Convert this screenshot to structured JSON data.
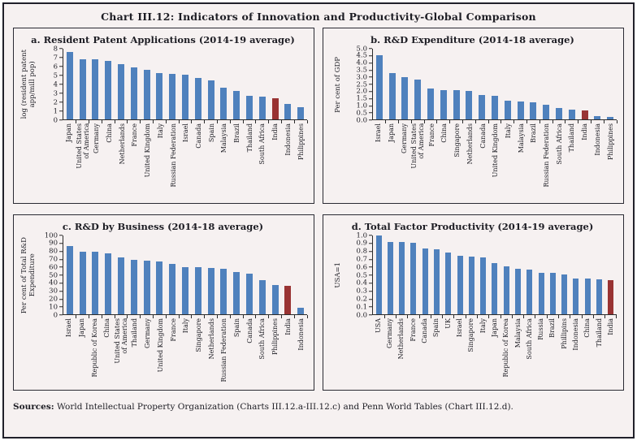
{
  "figure": {
    "title": "Chart III.12: Indicators of Innovation and Productivity-Global Comparison",
    "sources_label": "Sources:",
    "sources_text": "World Intellectual Property Organization (Charts III.12.a-III.12.c) and Penn World Tables (Chart III.12.d)."
  },
  "colors": {
    "bar_blue": "#4f81bd",
    "highlight_red": "#993333",
    "background": "#f6f1f1",
    "frame_border": "#20202a"
  },
  "chart_data": [
    {
      "id": "a",
      "type": "bar",
      "title": "a. Resident Patent Applications (2014-19 average)",
      "ylabel": "log (resident patent\napp/mill pop)",
      "ylim": [
        0,
        8
      ],
      "ystep": 1,
      "ydecimals": 0,
      "grid": false,
      "legend": "none",
      "highlight_category": "India",
      "categories": [
        "Japan",
        "United States\nof America",
        "Germany",
        "China",
        "Netherlands",
        "France",
        "United Kingdom",
        "Italy",
        "Russian Federation",
        "Israel",
        "Canada",
        "Spain",
        "Malaysia",
        "Brazil",
        "Thailand",
        "South Africa",
        "India",
        "Indonesia",
        "Philippines"
      ],
      "values": [
        7.6,
        6.8,
        6.8,
        6.65,
        6.25,
        5.9,
        5.65,
        5.25,
        5.15,
        5.05,
        4.7,
        4.4,
        3.6,
        3.2,
        2.65,
        2.55,
        2.4,
        1.75,
        1.35
      ]
    },
    {
      "id": "b",
      "type": "bar",
      "title": "b. R&D Expenditure (2014-18 average)",
      "ylabel": "Per cent of GDP",
      "ylim": [
        0,
        5
      ],
      "ystep": 0.5,
      "ydecimals": 1,
      "grid": false,
      "legend": "none",
      "highlight_category": "India",
      "categories": [
        "Israel",
        "Japan",
        "Germany",
        "United States\nof America",
        "France",
        "China",
        "Singapore",
        "Netherlands",
        "Canada",
        "United Kingdom",
        "Italy",
        "Malaysia",
        "Brazil",
        "Russian Federation",
        "South Africa",
        "Thailand",
        "India",
        "Indonesia",
        "Philippines"
      ],
      "values": [
        4.55,
        3.25,
        3.0,
        2.8,
        2.2,
        2.05,
        2.05,
        2.0,
        1.7,
        1.65,
        1.35,
        1.25,
        1.2,
        1.05,
        0.8,
        0.7,
        0.65,
        0.25,
        0.15
      ]
    },
    {
      "id": "c",
      "type": "bar",
      "title": "c. R&D by Business (2014-18 average)",
      "ylabel": "Per cent of Total R&D\nExpenditure",
      "ylim": [
        0,
        100
      ],
      "ystep": 10,
      "ydecimals": 0,
      "grid": false,
      "legend": "none",
      "highlight_category": "India",
      "categories": [
        "Israel",
        "Japan",
        "Republic of Korea",
        "China",
        "United States\nof America",
        "Thailand",
        "Germany",
        "United Kingdom",
        "France",
        "Italy",
        "Singapore",
        "Netherlands",
        "Russian Federation",
        "Spain",
        "Canada",
        "South Africa",
        "Philippines",
        "India",
        "Indonesia"
      ],
      "values": [
        87,
        79,
        79,
        77,
        72,
        69,
        68,
        67,
        64,
        60,
        60,
        59,
        58,
        54,
        52,
        43,
        37,
        36,
        8
      ]
    },
    {
      "id": "d",
      "type": "bar",
      "title": "d. Total Factor Productivity (2014-19 average)",
      "ylabel": "USA=1",
      "ylim": [
        0,
        1
      ],
      "ystep": 0.1,
      "ydecimals": 1,
      "grid": false,
      "legend": "none",
      "highlight_category": "India",
      "categories": [
        "USA",
        "Germany",
        "Netherlands",
        "France",
        "Canada",
        "Spain",
        "UK",
        "Israel",
        "Singapore",
        "Italy",
        "Japan",
        "Republic of Korea",
        "Malaysia",
        "South Africa",
        "Russia",
        "Brazil",
        "Phillipins",
        "Indonesia",
        "China",
        "Thailand",
        "India"
      ],
      "values": [
        1.0,
        0.92,
        0.92,
        0.91,
        0.84,
        0.83,
        0.78,
        0.74,
        0.73,
        0.72,
        0.65,
        0.61,
        0.58,
        0.57,
        0.53,
        0.53,
        0.51,
        0.45,
        0.45,
        0.44,
        0.43
      ]
    }
  ]
}
